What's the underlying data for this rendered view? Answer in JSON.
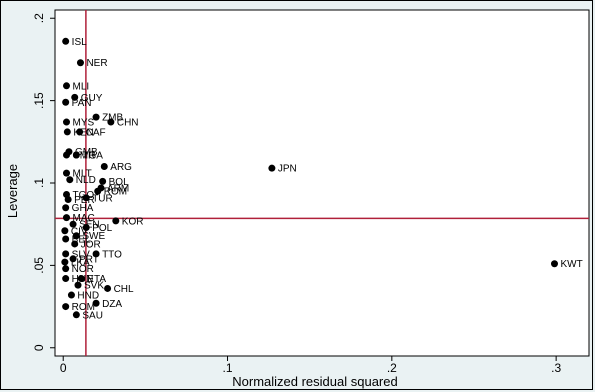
{
  "chart_data": {
    "type": "scatter",
    "xlabel": "Normalized residual squared",
    "ylabel": "Leverage",
    "xlim": [
      -0.005,
      0.32
    ],
    "ylim": [
      -0.005,
      0.205
    ],
    "x_ticks": [
      {
        "v": 0,
        "label": "0"
      },
      {
        "v": 0.1,
        "label": ".1"
      },
      {
        "v": 0.2,
        "label": ".2"
      },
      {
        "v": 0.3,
        "label": ".3"
      }
    ],
    "y_ticks": [
      {
        "v": 0,
        "label": "0"
      },
      {
        "v": 0.05,
        "label": ".05"
      },
      {
        "v": 0.1,
        "label": ".1"
      },
      {
        "v": 0.15,
        "label": ".15"
      },
      {
        "v": 0.2,
        "label": ".2"
      }
    ],
    "reference_lines": {
      "x": 0.0138,
      "y": 0.0785,
      "color": "#b0203a"
    },
    "grid": false,
    "marker_color": "#000000",
    "points": [
      {
        "x": 0.0015,
        "y": 0.186,
        "label": "ISL"
      },
      {
        "x": 0.0105,
        "y": 0.173,
        "label": "NER"
      },
      {
        "x": 0.002,
        "y": 0.159,
        "label": "MLI"
      },
      {
        "x": 0.007,
        "y": 0.152,
        "label": "GUY"
      },
      {
        "x": 0.0015,
        "y": 0.149,
        "label": "PAN"
      },
      {
        "x": 0.02,
        "y": 0.14,
        "label": "ZMB"
      },
      {
        "x": 0.029,
        "y": 0.137,
        "label": "CHN"
      },
      {
        "x": 0.002,
        "y": 0.137,
        "label": "MYS"
      },
      {
        "x": 0.0025,
        "y": 0.131,
        "label": "KEN"
      },
      {
        "x": 0.01,
        "y": 0.131,
        "label": "CAF"
      },
      {
        "x": 0.0035,
        "y": 0.119,
        "label": "GMB"
      },
      {
        "x": 0.002,
        "y": 0.117,
        "label": "CMR"
      },
      {
        "x": 0.008,
        "y": 0.117,
        "label": "TGA"
      },
      {
        "x": 0.025,
        "y": 0.11,
        "label": "ARG"
      },
      {
        "x": 0.127,
        "y": 0.109,
        "label": "JPN"
      },
      {
        "x": 0.002,
        "y": 0.106,
        "label": "MLT"
      },
      {
        "x": 0.004,
        "y": 0.102,
        "label": "NLD"
      },
      {
        "x": 0.024,
        "y": 0.101,
        "label": "BOL"
      },
      {
        "x": 0.023,
        "y": 0.097,
        "label": "ARM"
      },
      {
        "x": 0.021,
        "y": 0.095,
        "label": "ROM"
      },
      {
        "x": 0.002,
        "y": 0.093,
        "label": "TGO"
      },
      {
        "x": 0.014,
        "y": 0.091,
        "label": "TUR"
      },
      {
        "x": 0.003,
        "y": 0.09,
        "label": "PER"
      },
      {
        "x": 0.0015,
        "y": 0.085,
        "label": "GHA"
      },
      {
        "x": 0.032,
        "y": 0.077,
        "label": "KOR"
      },
      {
        "x": 0.002,
        "y": 0.079,
        "label": "MAC"
      },
      {
        "x": 0.006,
        "y": 0.075,
        "label": "SEN"
      },
      {
        "x": 0.014,
        "y": 0.073,
        "label": "POL"
      },
      {
        "x": 0.001,
        "y": 0.071,
        "label": "CIV"
      },
      {
        "x": 0.008,
        "y": 0.068,
        "label": "SWE"
      },
      {
        "x": 0.0015,
        "y": 0.066,
        "label": "BEL"
      },
      {
        "x": 0.007,
        "y": 0.063,
        "label": "JOR"
      },
      {
        "x": 0.02,
        "y": 0.057,
        "label": "TTO"
      },
      {
        "x": 0.0015,
        "y": 0.057,
        "label": "SLV"
      },
      {
        "x": 0.006,
        "y": 0.054,
        "label": "PRT"
      },
      {
        "x": 0.001,
        "y": 0.052,
        "label": "LKA"
      },
      {
        "x": 0.299,
        "y": 0.051,
        "label": "KWT"
      },
      {
        "x": 0.0015,
        "y": 0.048,
        "label": "NOR"
      },
      {
        "x": 0.011,
        "y": 0.042,
        "label": "ETA"
      },
      {
        "x": 0.0015,
        "y": 0.042,
        "label": "HUN"
      },
      {
        "x": 0.009,
        "y": 0.038,
        "label": "SVK"
      },
      {
        "x": 0.027,
        "y": 0.036,
        "label": "CHL"
      },
      {
        "x": 0.005,
        "y": 0.032,
        "label": "HND"
      },
      {
        "x": 0.02,
        "y": 0.027,
        "label": "DZA"
      },
      {
        "x": 0.0015,
        "y": 0.025,
        "label": "ROM"
      },
      {
        "x": 0.008,
        "y": 0.02,
        "label": "SAU"
      }
    ]
  }
}
